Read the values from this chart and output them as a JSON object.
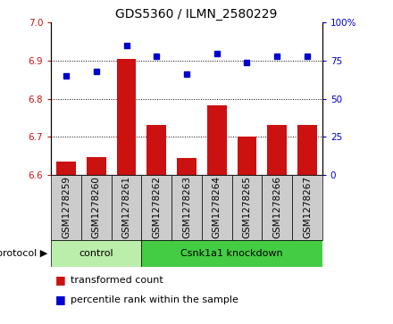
{
  "title": "GDS5360 / ILMN_2580229",
  "samples": [
    "GSM1278259",
    "GSM1278260",
    "GSM1278261",
    "GSM1278262",
    "GSM1278263",
    "GSM1278264",
    "GSM1278265",
    "GSM1278266",
    "GSM1278267"
  ],
  "bar_values": [
    6.635,
    6.648,
    6.905,
    6.732,
    6.645,
    6.783,
    6.702,
    6.732,
    6.732
  ],
  "dot_values": [
    65,
    68,
    85,
    78,
    66,
    80,
    74,
    78,
    78
  ],
  "ylim_left": [
    6.6,
    7.0
  ],
  "ylim_right": [
    0,
    100
  ],
  "yticks_left": [
    6.6,
    6.7,
    6.8,
    6.9,
    7.0
  ],
  "yticks_right": [
    0,
    25,
    50,
    75,
    100
  ],
  "bar_color": "#CC1111",
  "dot_color": "#0000CC",
  "control_samples": 3,
  "protocol_label": "protocol",
  "group_labels": [
    "control",
    "Csnk1a1 knockdown"
  ],
  "ctrl_color": "#BBEEAA",
  "kd_color": "#44CC44",
  "legend_bar_label": "transformed count",
  "legend_dot_label": "percentile rank within the sample",
  "plot_bg_color": "#FFFFFF",
  "xlabel_box_color": "#CCCCCC",
  "tick_label_fontsize": 7.5,
  "title_fontsize": 10,
  "proto_fontsize": 8,
  "legend_fontsize": 8
}
